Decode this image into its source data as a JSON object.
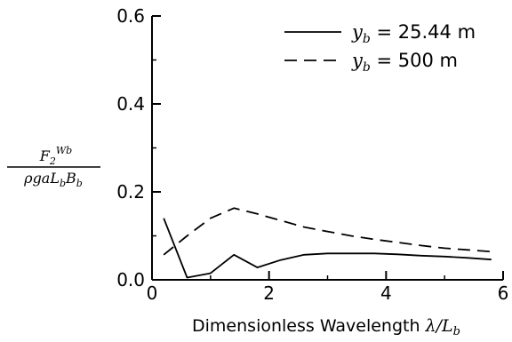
{
  "chart_data": {
    "type": "line",
    "xlabel": "Dimensionless Wavelength λ/L_b",
    "xlabel_parts": {
      "text": "Dimensionless Wavelength ",
      "math": "λ/L",
      "sub": "b"
    },
    "ylabel": {
      "numerator": "F",
      "numerator_sub": "2",
      "numerator_sup": "Wb",
      "denominator": "ρgaL",
      "denominator_sub1": "b",
      "denominator_mid": "B",
      "denominator_sub2": "b"
    },
    "xlim": [
      0,
      6
    ],
    "ylim": [
      0,
      0.6
    ],
    "x_ticks": [
      0,
      2,
      4,
      6
    ],
    "x_tick_labels": [
      "0",
      "2",
      "4",
      "6"
    ],
    "y_ticks": [
      0.0,
      0.2,
      0.4,
      0.6
    ],
    "y_tick_labels": [
      "0.0",
      "0.2",
      "0.4",
      "0.6"
    ],
    "x_minor_ticks": [
      1,
      3,
      5
    ],
    "y_minor_ticks": [
      0.1,
      0.3,
      0.5
    ],
    "legend_position": "top-right",
    "series": [
      {
        "name": "y_b = 25.44 m",
        "legend_var": "y",
        "legend_sub": "b",
        "legend_rest": "= 25.44 m",
        "style": "solid",
        "x": [
          0.2,
          0.6,
          1.0,
          1.4,
          1.8,
          2.2,
          2.6,
          3.0,
          3.4,
          3.8,
          4.2,
          4.6,
          5.0,
          5.4,
          5.8
        ],
        "y": [
          0.14,
          0.005,
          0.015,
          0.057,
          0.028,
          0.045,
          0.057,
          0.06,
          0.06,
          0.06,
          0.058,
          0.055,
          0.053,
          0.05,
          0.046
        ]
      },
      {
        "name": "y_b = 500 m",
        "legend_var": "y",
        "legend_sub": "b",
        "legend_rest": "= 500 m",
        "style": "dashed",
        "x": [
          0.2,
          0.6,
          1.0,
          1.4,
          1.8,
          2.2,
          2.6,
          3.0,
          3.4,
          3.8,
          4.2,
          4.6,
          5.0,
          5.4,
          5.8
        ],
        "y": [
          0.057,
          0.1,
          0.14,
          0.163,
          0.15,
          0.135,
          0.12,
          0.11,
          0.1,
          0.092,
          0.085,
          0.078,
          0.072,
          0.068,
          0.064
        ]
      }
    ]
  }
}
